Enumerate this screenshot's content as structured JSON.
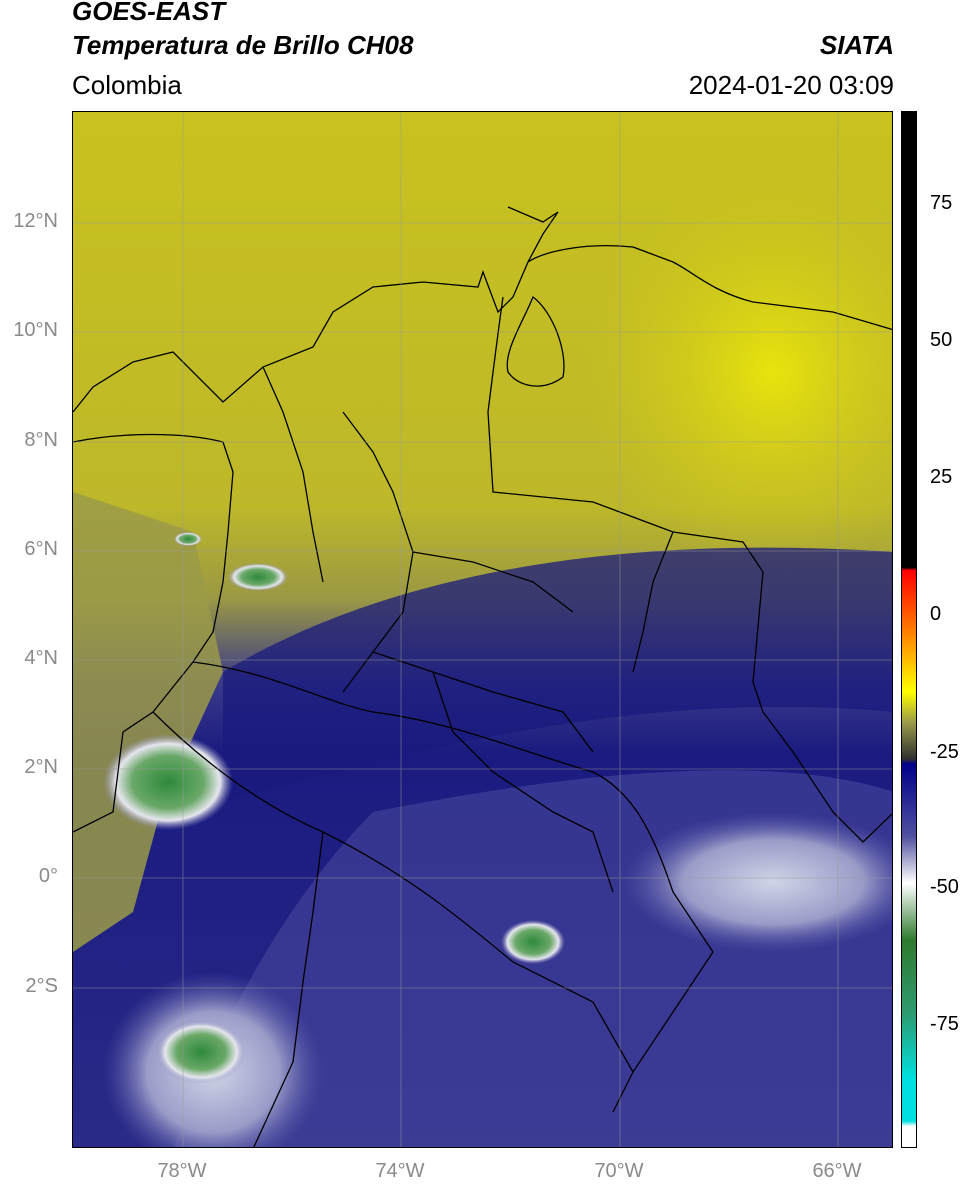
{
  "header": {
    "satellite": "GOES-EAST",
    "product": "Temperatura de Brillo CH08",
    "region": "Colombia",
    "source": "SIATA",
    "datetime": "2024-01-20 03:09"
  },
  "map": {
    "lat_labels": [
      {
        "text": "12°N",
        "lat": 12
      },
      {
        "text": "10°N",
        "lat": 10
      },
      {
        "text": "8°N",
        "lat": 8
      },
      {
        "text": "6°N",
        "lat": 6
      },
      {
        "text": "4°N",
        "lat": 4
      },
      {
        "text": "2°N",
        "lat": 2
      },
      {
        "text": "0°",
        "lat": 0
      },
      {
        "text": "2°S",
        "lat": -2
      }
    ],
    "lon_labels": [
      {
        "text": "78°W",
        "lon": -78
      },
      {
        "text": "74°W",
        "lon": -74
      },
      {
        "text": "70°W",
        "lon": -70
      },
      {
        "text": "66°W",
        "lon": -66
      }
    ],
    "extent": {
      "lon_min": -80,
      "lon_max": -65,
      "lat_min": -5,
      "lat_max": 14
    }
  },
  "colorbar": {
    "ticks": [
      "75",
      "50",
      "25",
      "0",
      "-25",
      "-50",
      "-75"
    ],
    "tick_values": [
      75,
      50,
      25,
      0,
      -25,
      -50,
      -75
    ],
    "range": [
      -100,
      90
    ]
  }
}
